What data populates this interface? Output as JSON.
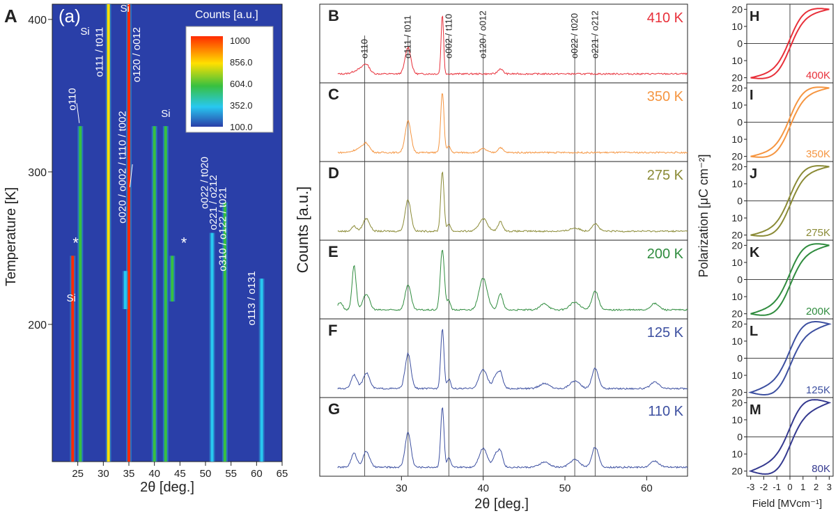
{
  "chart_data": [
    {
      "panel": "A",
      "sublabel": "(a)",
      "type": "heatmap",
      "xlabel": "2θ [deg.]",
      "ylabel": "Temperature [K]",
      "xlim": [
        20,
        65
      ],
      "ylim": [
        110,
        410
      ],
      "xticks": [
        25,
        30,
        35,
        40,
        45,
        50,
        55,
        60,
        65
      ],
      "yticks": [
        200,
        300,
        400
      ],
      "colorbar": {
        "title": "Counts [a.u.]",
        "ticks": [
          "1000",
          "856.0",
          "604.0",
          "352.0",
          "100.0"
        ],
        "colors": [
          "#ff2a00",
          "#ffe000",
          "#38c040",
          "#28c8f0",
          "#2a3fa8"
        ]
      },
      "background_color": "#2a3fa8",
      "streaks": [
        {
          "x": 24.0,
          "t_min": 110,
          "t_max": 245,
          "level": 0.95
        },
        {
          "x": 25.5,
          "t_min": 110,
          "t_max": 330,
          "level": 0.4
        },
        {
          "x": 31.0,
          "t_min": 110,
          "t_max": 410,
          "level": 0.7
        },
        {
          "x": 35.0,
          "t_min": 110,
          "t_max": 410,
          "level": 1.0
        },
        {
          "x": 34.3,
          "t_min": 210,
          "t_max": 235,
          "level": 0.35
        },
        {
          "x": 40.0,
          "t_min": 110,
          "t_max": 330,
          "level": 0.45
        },
        {
          "x": 42.2,
          "t_min": 110,
          "t_max": 330,
          "level": 0.4
        },
        {
          "x": 43.5,
          "t_min": 215,
          "t_max": 245,
          "level": 0.6
        },
        {
          "x": 51.3,
          "t_min": 110,
          "t_max": 260,
          "level": 0.3
        },
        {
          "x": 53.8,
          "t_min": 110,
          "t_max": 280,
          "level": 0.5
        },
        {
          "x": 61.0,
          "t_min": 110,
          "t_max": 230,
          "level": 0.15
        }
      ],
      "annotations": [
        {
          "text": "o110",
          "x": 24.6,
          "y": 355,
          "rotate": true
        },
        {
          "text": "Si",
          "x": 25.5,
          "y": 390
        },
        {
          "text": "o111 / t011",
          "x": 29.9,
          "y": 395,
          "rotate": true
        },
        {
          "text": "Si",
          "x": 33.3,
          "y": 405
        },
        {
          "text": "o020 / o002 / t110 / t002",
          "x": 34.4,
          "y": 340,
          "rotate": true
        },
        {
          "text": "o120 / o012",
          "x": 37.2,
          "y": 395,
          "rotate": true
        },
        {
          "text": "Si",
          "x": 41.3,
          "y": 336
        },
        {
          "text": "o022 / t020",
          "x": 50.5,
          "y": 310,
          "rotate": true
        },
        {
          "text": "o221 / o212",
          "x": 52.2,
          "y": 298,
          "rotate": true
        },
        {
          "text": "o310 / o122 / t021",
          "x": 54.0,
          "y": 290,
          "rotate": true
        },
        {
          "text": "o113 / o131",
          "x": 59.7,
          "y": 235,
          "rotate": true
        },
        {
          "text": "Si",
          "x": 22.8,
          "y": 215
        },
        {
          "text": "*",
          "x": 24.0,
          "y": 250
        },
        {
          "text": "*",
          "x": 45.2,
          "y": 250
        }
      ]
    },
    {
      "panels": [
        "B",
        "C",
        "D",
        "E",
        "F",
        "G"
      ],
      "type": "line",
      "ylabel": "Counts [a.u.]",
      "xlabel": "2θ [deg.]",
      "xlim": [
        20,
        65
      ],
      "xticks": [
        30,
        40,
        50,
        60
      ],
      "reference_lines": [
        25.5,
        30.8,
        35.8,
        40.0,
        51.2,
        53.7
      ],
      "peak_labels": [
        {
          "text": "o110",
          "x": 25.5
        },
        {
          "text": "o111 / t011",
          "x": 30.8
        },
        {
          "text": "o002 / t110",
          "x": 35.8
        },
        {
          "text": "o120 / o012",
          "x": 40.0
        },
        {
          "text": "o022 / t020",
          "x": 51.2
        },
        {
          "text": "o221 / o212",
          "x": 53.7
        }
      ],
      "series": [
        {
          "panel": "B",
          "name": "410 K",
          "color": "#e8303a",
          "peaks": [
            [
              24.9,
              0.07,
              0.7
            ],
            [
              25.7,
              0.12,
              0.4
            ],
            [
              30.8,
              0.42,
              0.35
            ],
            [
              35.0,
              0.95,
              0.15
            ],
            [
              42.1,
              0.08,
              0.3
            ]
          ]
        },
        {
          "panel": "C",
          "name": "350 K",
          "color": "#f59540",
          "peaks": [
            [
              24.9,
              0.06,
              0.7
            ],
            [
              25.7,
              0.12,
              0.4
            ],
            [
              30.8,
              0.5,
              0.35
            ],
            [
              35.0,
              0.95,
              0.2
            ],
            [
              35.8,
              0.1,
              0.2
            ],
            [
              40.0,
              0.06,
              0.4
            ],
            [
              42.1,
              0.08,
              0.3
            ]
          ]
        },
        {
          "panel": "D",
          "name": "275 K",
          "color": "#8a8a35",
          "peaks": [
            [
              24.2,
              0.08,
              0.3
            ],
            [
              25.7,
              0.2,
              0.4
            ],
            [
              30.8,
              0.5,
              0.35
            ],
            [
              35.0,
              0.95,
              0.2
            ],
            [
              35.8,
              0.12,
              0.2
            ],
            [
              40.0,
              0.2,
              0.5
            ],
            [
              42.1,
              0.15,
              0.3
            ],
            [
              51.2,
              0.05,
              0.6
            ],
            [
              53.7,
              0.12,
              0.4
            ]
          ]
        },
        {
          "panel": "E",
          "name": "200 K",
          "color": "#2f8c3e",
          "peaks": [
            [
              22.5,
              0.12,
              0.3
            ],
            [
              24.2,
              0.7,
              0.25
            ],
            [
              25.7,
              0.25,
              0.4
            ],
            [
              30.8,
              0.4,
              0.35
            ],
            [
              35.0,
              0.95,
              0.25
            ],
            [
              35.8,
              0.15,
              0.2
            ],
            [
              40.0,
              0.5,
              0.5
            ],
            [
              42.1,
              0.25,
              0.3
            ],
            [
              47.5,
              0.1,
              0.5
            ],
            [
              51.2,
              0.12,
              0.6
            ],
            [
              53.7,
              0.3,
              0.4
            ],
            [
              61.0,
              0.1,
              0.5
            ]
          ]
        },
        {
          "panel": "F",
          "name": "125 K",
          "color": "#3c4fa0",
          "peaks": [
            [
              24.2,
              0.22,
              0.35
            ],
            [
              25.7,
              0.25,
              0.4
            ],
            [
              30.8,
              0.55,
              0.35
            ],
            [
              35.0,
              0.95,
              0.2
            ],
            [
              35.8,
              0.15,
              0.2
            ],
            [
              40.0,
              0.3,
              0.5
            ],
            [
              41.5,
              0.18,
              0.3
            ],
            [
              42.1,
              0.25,
              0.3
            ],
            [
              47.5,
              0.08,
              0.6
            ],
            [
              51.2,
              0.12,
              0.6
            ],
            [
              53.7,
              0.32,
              0.4
            ],
            [
              61.0,
              0.1,
              0.5
            ]
          ]
        },
        {
          "panel": "G",
          "name": "110 K",
          "color": "#3c4fa0",
          "peaks": [
            [
              24.2,
              0.22,
              0.35
            ],
            [
              25.7,
              0.25,
              0.4
            ],
            [
              30.8,
              0.55,
              0.35
            ],
            [
              35.0,
              0.95,
              0.2
            ],
            [
              35.8,
              0.15,
              0.2
            ],
            [
              40.0,
              0.3,
              0.5
            ],
            [
              41.5,
              0.18,
              0.3
            ],
            [
              42.1,
              0.25,
              0.3
            ],
            [
              47.5,
              0.08,
              0.6
            ],
            [
              51.2,
              0.12,
              0.6
            ],
            [
              53.7,
              0.32,
              0.4
            ],
            [
              61.0,
              0.1,
              0.5
            ]
          ]
        }
      ]
    },
    {
      "panels": [
        "H",
        "I",
        "J",
        "K",
        "L",
        "M"
      ],
      "type": "line",
      "xlabel": "Field [MVcm⁻¹]",
      "ylabel": "Polarization [μC cm⁻²]",
      "xlim": [
        -3.3,
        3.3
      ],
      "ylim": [
        -23,
        23
      ],
      "xticks": [
        -3,
        -2,
        -1,
        0,
        1,
        2,
        3
      ],
      "xtick_labels": [
        "-3",
        "-2",
        "-1",
        "0",
        "1",
        "2",
        "3"
      ],
      "yticks": [
        20,
        10,
        0,
        -10,
        -20
      ],
      "ytick_labels": [
        "20",
        "10",
        "0",
        "10",
        "20"
      ],
      "series": [
        {
          "panel": "H",
          "name": "400K",
          "color": "#e8303a",
          "pmax": 20,
          "half_width": 2.5
        },
        {
          "panel": "I",
          "name": "350K",
          "color": "#f59540",
          "pmax": 20,
          "half_width": 2.6
        },
        {
          "panel": "J",
          "name": "275K",
          "color": "#8a8a35",
          "pmax": 20,
          "half_width": 2.7
        },
        {
          "panel": "K",
          "name": "200K",
          "color": "#2f8c3e",
          "pmax": 20,
          "half_width": 3.5
        },
        {
          "panel": "L",
          "name": "125K",
          "color": "#3c4fa0",
          "pmax": 20,
          "half_width": 4.5
        },
        {
          "panel": "M",
          "name": "80K",
          "color": "#34398f",
          "pmax": 20,
          "half_width": 5.2
        }
      ]
    }
  ]
}
